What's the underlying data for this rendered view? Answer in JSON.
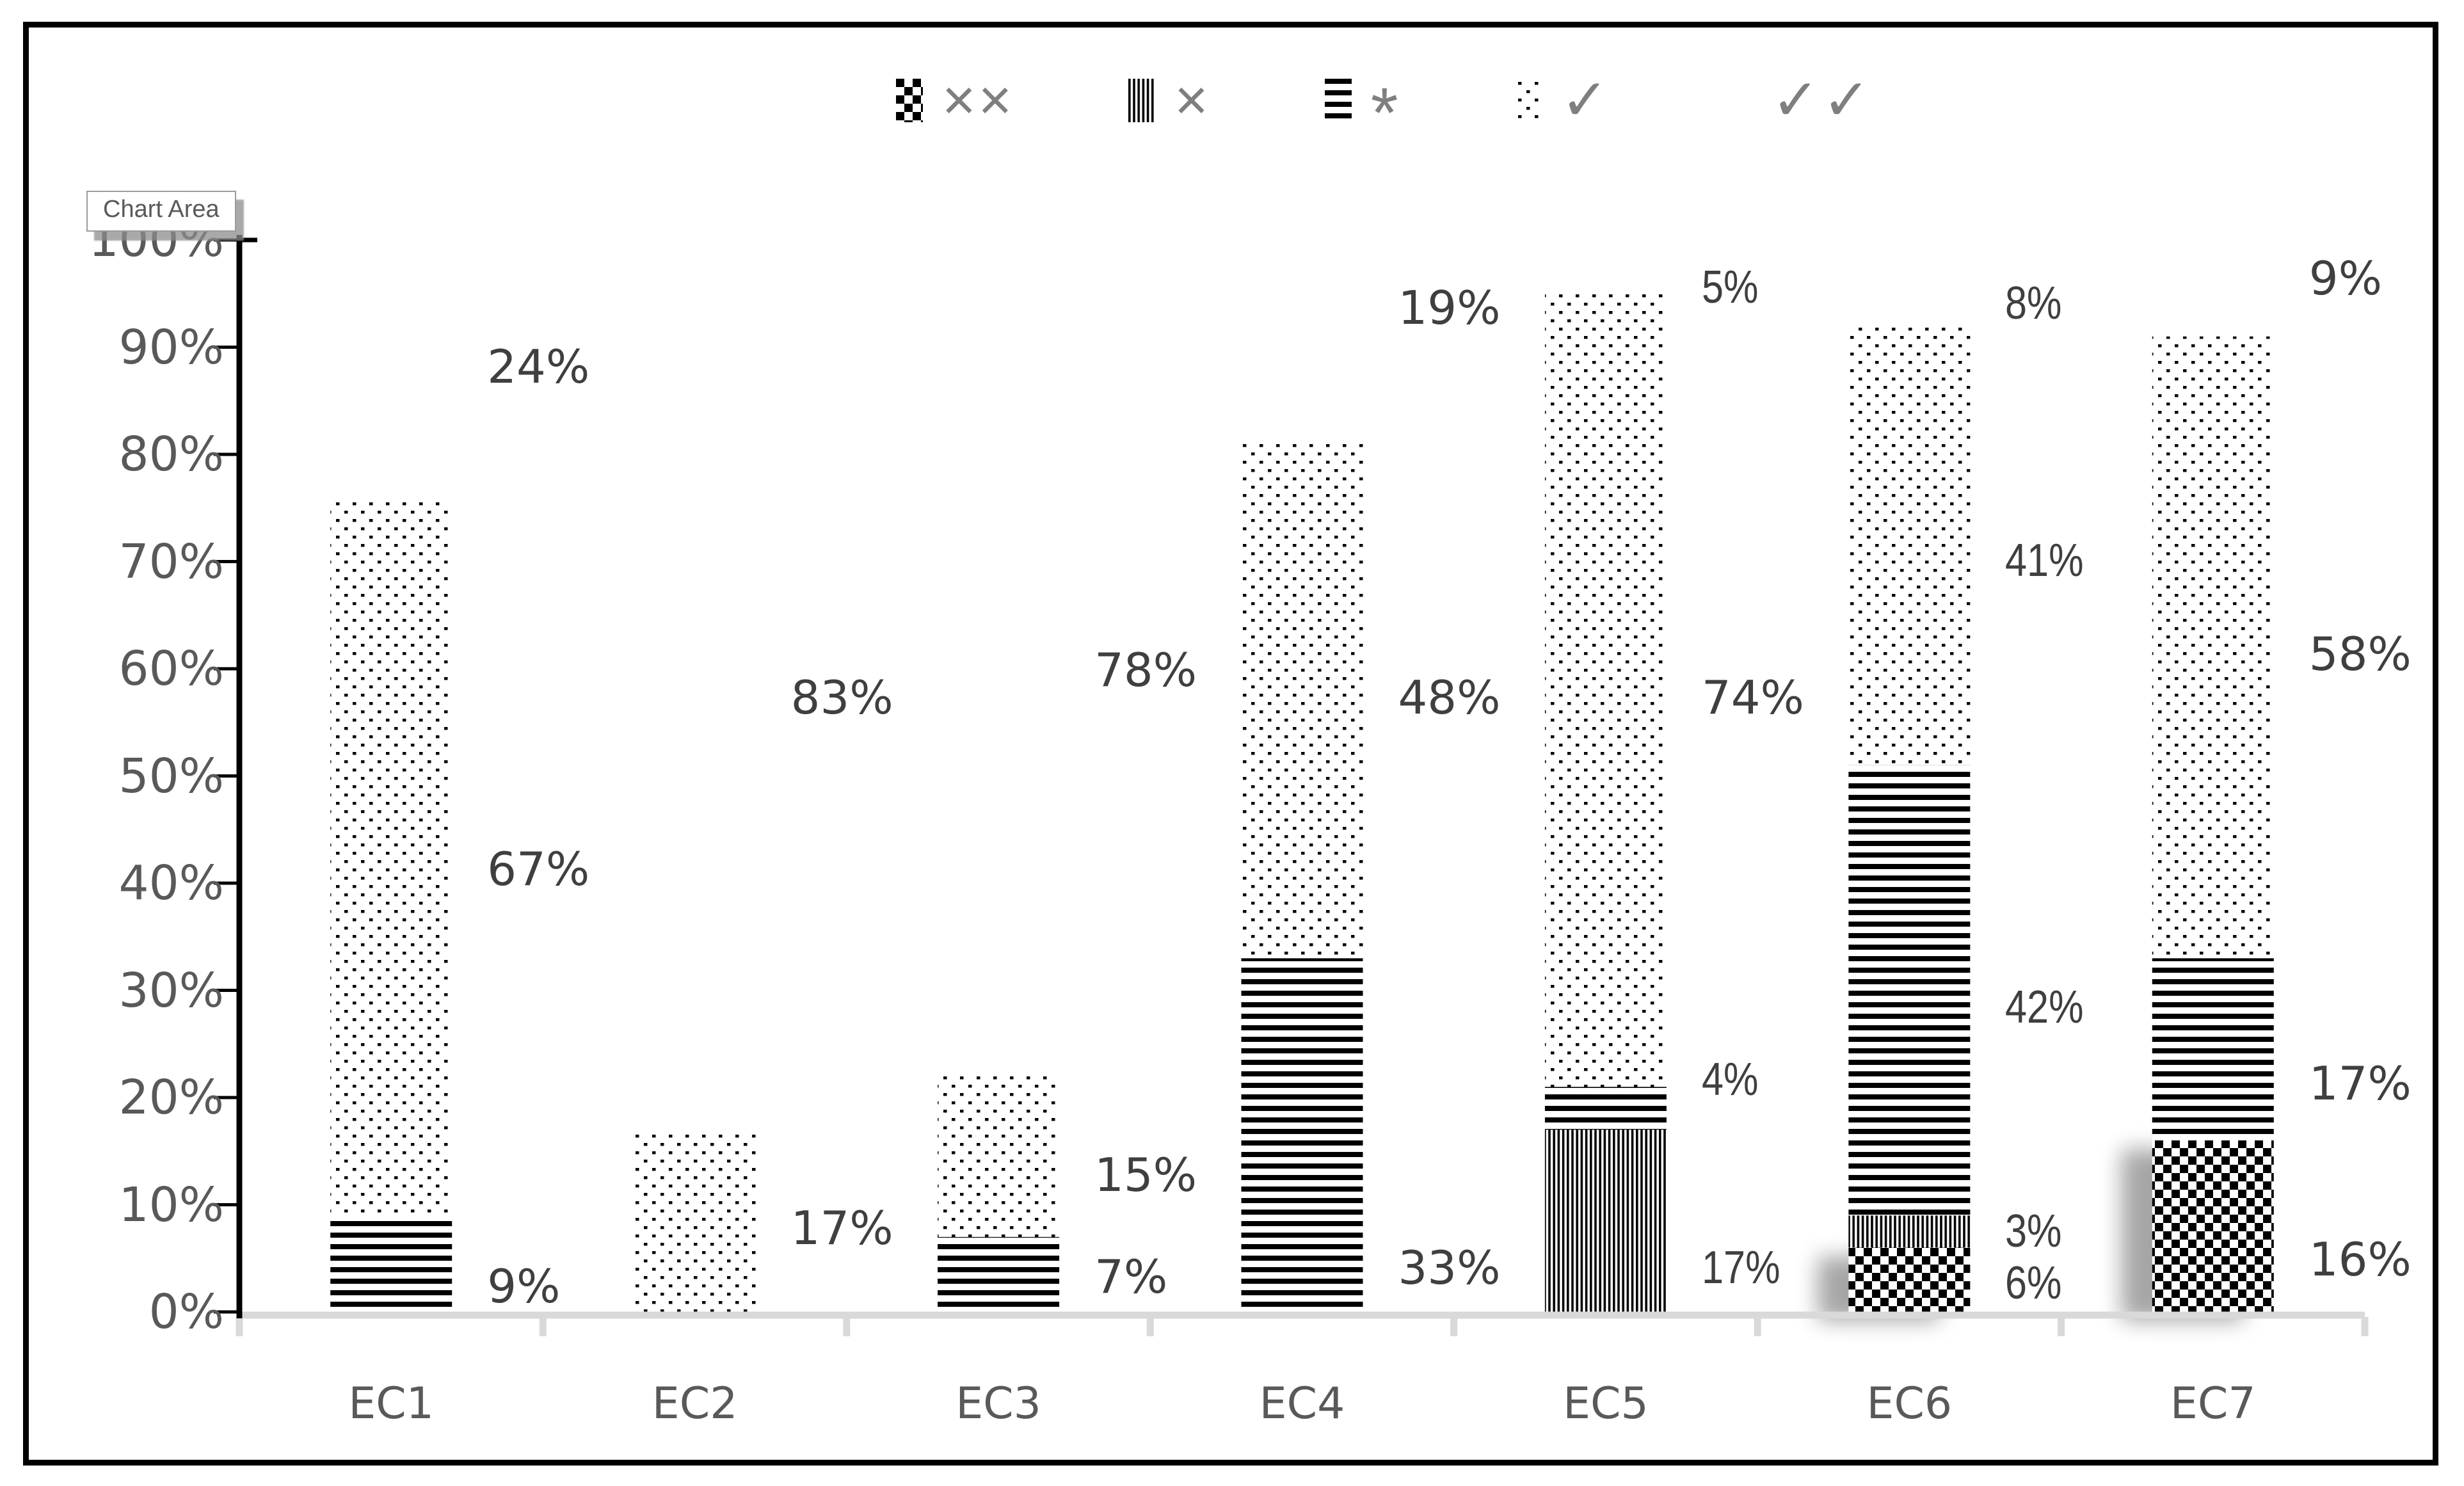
{
  "tooltip": {
    "text": "Chart Area"
  },
  "legend": {
    "position": "top",
    "items": [
      {
        "key": "xx",
        "label": "××",
        "pattern": "checkerboard"
      },
      {
        "key": "x",
        "label": "×",
        "pattern": "vertical-stripes"
      },
      {
        "key": "star",
        "label": "*",
        "pattern": "horizontal-stripes"
      },
      {
        "key": "check",
        "label": "✓",
        "pattern": "dots"
      },
      {
        "key": "checkcheck",
        "label": "✓✓",
        "pattern": "diagonal-dashes"
      }
    ]
  },
  "axes": {
    "y_ticks": [
      "100%",
      "90%",
      "80%",
      "70%",
      "60%",
      "50%",
      "40%",
      "30%",
      "20%",
      "10%",
      "0%"
    ],
    "x_categories": [
      "EC1",
      "EC2",
      "EC3",
      "EC4",
      "EC5",
      "EC6",
      "EC7"
    ]
  },
  "colors": {
    "pattern_fg": "#000000",
    "data_label": "#3f3f3f",
    "axis_text": "#595959",
    "y_axis_line": "#000000",
    "x_axis_line": "#d9d9d9",
    "legend_text": "#7f7f7f",
    "tooltip_text": "#595959",
    "shadow": "rgba(0,0,0,0.35)"
  },
  "chart_data": {
    "type": "bar",
    "subtype": "100-percent-stacked-column",
    "title": "",
    "xlabel": "",
    "ylabel": "",
    "ylim": [
      0,
      100
    ],
    "y_tick_step": 10,
    "grid": false,
    "legend_position": "top",
    "categories": [
      "EC1",
      "EC2",
      "EC3",
      "EC4",
      "EC5",
      "EC6",
      "EC7"
    ],
    "series": [
      {
        "name": "××",
        "key": "xx",
        "values": [
          0,
          0,
          0,
          0,
          0,
          6,
          16
        ]
      },
      {
        "name": "×",
        "key": "x",
        "values": [
          0,
          0,
          0,
          0,
          17,
          3,
          0
        ]
      },
      {
        "name": "*",
        "key": "star",
        "values": [
          9,
          0,
          7,
          33,
          4,
          42,
          17
        ]
      },
      {
        "name": "✓",
        "key": "check",
        "values": [
          67,
          17,
          15,
          48,
          74,
          41,
          58
        ]
      },
      {
        "name": "✓✓",
        "key": "checkcheck",
        "values": [
          24,
          83,
          78,
          19,
          5,
          8,
          9
        ]
      }
    ],
    "bar_labels": {
      "EC1": [
        {
          "text": "9%",
          "y_pct": 2.4
        },
        {
          "text": "67%",
          "y_pct": 41.3
        },
        {
          "text": "24%",
          "y_pct": 88.2
        }
      ],
      "EC2": [
        {
          "text": "17%",
          "y_pct": 7.8
        },
        {
          "text": "83%",
          "y_pct": 57.3
        }
      ],
      "EC3": [
        {
          "text": "7%",
          "y_pct": 3.3
        },
        {
          "text": "15%",
          "y_pct": 12.8
        },
        {
          "text": "78%",
          "y_pct": 59.9
        }
      ],
      "EC4": [
        {
          "text": "33%",
          "y_pct": 4.1
        },
        {
          "text": "48%",
          "y_pct": 57.3
        },
        {
          "text": "19%",
          "y_pct": 93.7
        }
      ],
      "EC5": [
        {
          "text": "17%",
          "y_pct": 4.1,
          "narrow": true
        },
        {
          "text": "4%",
          "y_pct": 21.7,
          "narrow": true
        },
        {
          "text": "74%",
          "y_pct": 57.3
        },
        {
          "text": "5%",
          "y_pct": 95.6,
          "narrow": true
        }
      ],
      "EC6": [
        {
          "text": "6%",
          "y_pct": 2.7,
          "narrow": true
        },
        {
          "text": "3%",
          "y_pct": 7.5,
          "narrow": true
        },
        {
          "text": "42%",
          "y_pct": 28.4,
          "narrow": true
        },
        {
          "text": "41%",
          "y_pct": 70.1,
          "narrow": true
        },
        {
          "text": "8%",
          "y_pct": 94.1,
          "narrow": true
        }
      ],
      "EC7": [
        {
          "text": "16%",
          "y_pct": 4.9
        },
        {
          "text": "17%",
          "y_pct": 21.3
        },
        {
          "text": "58%",
          "y_pct": 61.4
        },
        {
          "text": "9%",
          "y_pct": 96.4
        }
      ]
    },
    "shadowed_series": [
      "xx"
    ]
  }
}
